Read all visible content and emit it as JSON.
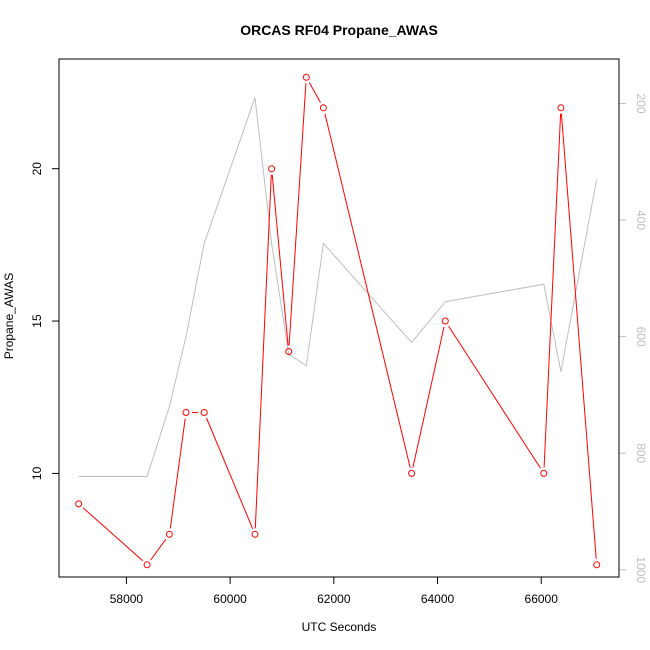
{
  "chart_data": {
    "type": "line",
    "title": "ORCAS RF04 Propane_AWAS",
    "xlabel": "UTC Seconds",
    "ylabel": "Propane_AWAS",
    "xlim": [
      56700,
      67500
    ],
    "ylim": [
      6.6,
      23.6
    ],
    "x_ticks": [
      58000,
      60000,
      62000,
      64000,
      66000
    ],
    "y_ticks": [
      10,
      15,
      20
    ],
    "y2_ticks": [
      200,
      400,
      600,
      800,
      1000
    ],
    "y2_reversed": true,
    "grid": false,
    "series": [
      {
        "color": "#ff0000",
        "markers": "open-circle",
        "axis": "left",
        "x": [
          57080,
          58400,
          58830,
          59150,
          59500,
          60480,
          60800,
          61130,
          61470,
          61800,
          63500,
          64150,
          66050,
          66380,
          67070
        ],
        "y": [
          9,
          7,
          8,
          12,
          12,
          8,
          20,
          14,
          23,
          22,
          10,
          15,
          10,
          22,
          7
        ],
        "gaps_after": [
          3
        ]
      },
      {
        "color": "#bebebe",
        "markers": "none",
        "axis": "right",
        "x": [
          57080,
          58400,
          58830,
          59150,
          59500,
          60480,
          60800,
          61130,
          61470,
          61800,
          63500,
          64150,
          66050,
          66380,
          67070
        ],
        "y": [
          840,
          840,
          720,
          600,
          440,
          190,
          440,
          630,
          650,
          440,
          610,
          540,
          510,
          660,
          330
        ]
      }
    ]
  }
}
